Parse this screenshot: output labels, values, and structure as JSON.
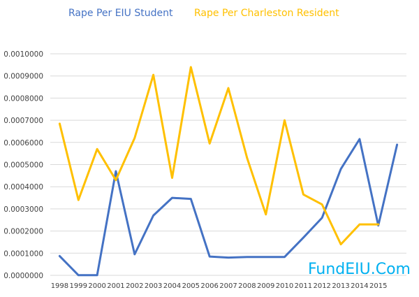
{
  "chart_data": {
    "type": "line",
    "title": "",
    "xlabel": "",
    "ylabel": "",
    "categories": [
      "1998",
      "1999",
      "2000",
      "2001",
      "2002",
      "2003",
      "2004",
      "2005",
      "2006",
      "2007",
      "2008",
      "2009",
      "2010",
      "2011",
      "2012",
      "2013",
      "2014",
      "2015",
      ""
    ],
    "ylim": [
      0,
      0.001
    ],
    "yticks": [
      "0.0000000",
      "0.0001000",
      "0.0002000",
      "0.0003000",
      "0.0004000",
      "0.0005000",
      "0.0006000",
      "0.0007000",
      "0.0008000",
      "0.0009000",
      "0.0010000"
    ],
    "grid": true,
    "legend_position": "top",
    "series": [
      {
        "name": "Rape Per EIU Student",
        "color": "#4472c4",
        "values": [
          8.7e-05,
          5e-07,
          5e-07,
          0.00047,
          9.5e-05,
          0.00027,
          0.00035,
          0.000345,
          8.5e-05,
          8e-05,
          8.3e-05,
          8.3e-05,
          8.3e-05,
          0.00017,
          0.00026,
          0.00048,
          0.000615,
          0.000225,
          0.00059
        ]
      },
      {
        "name": "Rape Per Charleston Resident",
        "color": "#ffc000",
        "values": [
          0.000685,
          0.00034,
          0.00057,
          0.00043,
          0.00062,
          0.000905,
          0.00044,
          0.00094,
          0.000595,
          0.000845,
          0.00053,
          0.000275,
          0.0007,
          0.000365,
          0.00032,
          0.00014,
          0.00023,
          0.00023,
          null
        ]
      }
    ]
  },
  "watermark": {
    "text": "FundEIU.Com",
    "color": "#00b0f0"
  }
}
